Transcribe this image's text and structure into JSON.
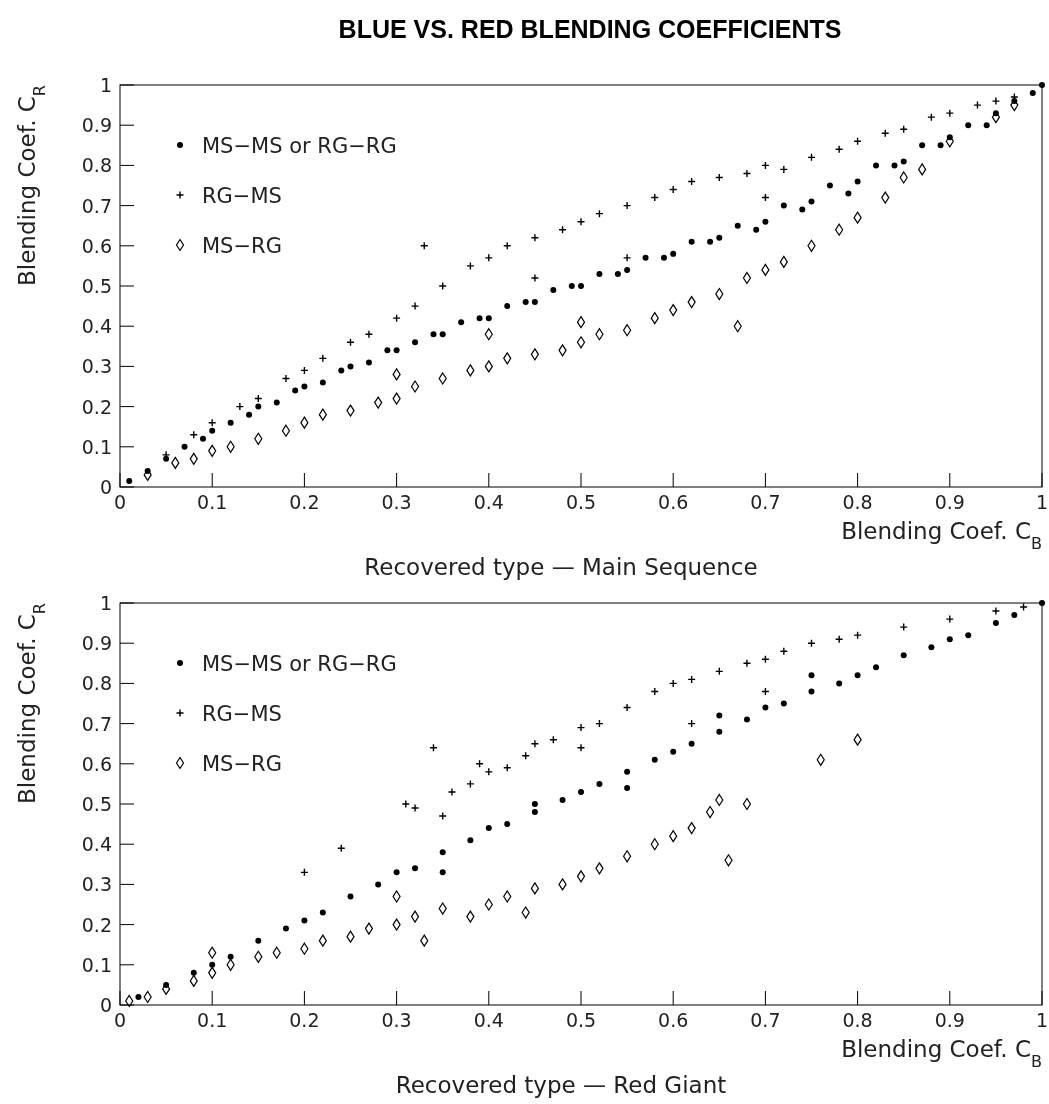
{
  "chart_data": [
    {
      "type": "scatter",
      "title": "BLUE VS. RED BLENDING COEFFICIENTS",
      "xlabel": "Blending Coef. C$_{B}$",
      "ylabel": "Blending Coef. C$_{R}$",
      "annotations": [
        "Recovered type  —  Main Sequence"
      ],
      "xlim": [
        0,
        1
      ],
      "ylim": [
        0,
        1
      ],
      "xticks": [
        0,
        0.1,
        0.2,
        0.3,
        0.4,
        0.5,
        0.6,
        0.7,
        0.8,
        0.9,
        1
      ],
      "yticks": [
        0,
        0.1,
        0.2,
        0.3,
        0.4,
        0.5,
        0.6,
        0.7,
        0.8,
        0.9,
        1
      ],
      "grid": false,
      "legend": "top left",
      "series": [
        {
          "name": "MS−MS or RG−RG",
          "color": "#000000",
          "marker": "circle",
          "x": [
            0.01,
            0.03,
            0.05,
            0.07,
            0.09,
            0.1,
            0.12,
            0.14,
            0.15,
            0.17,
            0.19,
            0.2,
            0.22,
            0.24,
            0.25,
            0.27,
            0.29,
            0.3,
            0.32,
            0.34,
            0.35,
            0.37,
            0.39,
            0.4,
            0.42,
            0.44,
            0.45,
            0.47,
            0.49,
            0.5,
            0.52,
            0.54,
            0.55,
            0.57,
            0.59,
            0.6,
            0.62,
            0.64,
            0.65,
            0.67,
            0.69,
            0.7,
            0.72,
            0.74,
            0.75,
            0.77,
            0.79,
            0.8,
            0.82,
            0.84,
            0.85,
            0.87,
            0.89,
            0.9,
            0.92,
            0.94,
            0.95,
            0.97,
            0.99,
            1.0
          ],
          "values": [
            0.015,
            0.04,
            0.07,
            0.1,
            0.12,
            0.14,
            0.16,
            0.18,
            0.2,
            0.21,
            0.24,
            0.25,
            0.26,
            0.29,
            0.3,
            0.31,
            0.34,
            0.34,
            0.36,
            0.38,
            0.38,
            0.41,
            0.42,
            0.42,
            0.45,
            0.46,
            0.46,
            0.49,
            0.5,
            0.5,
            0.53,
            0.53,
            0.54,
            0.57,
            0.57,
            0.58,
            0.61,
            0.61,
            0.62,
            0.65,
            0.64,
            0.66,
            0.7,
            0.69,
            0.71,
            0.75,
            0.73,
            0.76,
            0.8,
            0.8,
            0.81,
            0.85,
            0.85,
            0.87,
            0.9,
            0.9,
            0.93,
            0.96,
            0.98,
            1.0
          ]
        },
        {
          "name": "RG−MS",
          "color": "#000000",
          "marker": "cross",
          "x": [
            0.05,
            0.08,
            0.1,
            0.13,
            0.15,
            0.18,
            0.2,
            0.22,
            0.25,
            0.27,
            0.3,
            0.32,
            0.33,
            0.35,
            0.38,
            0.4,
            0.42,
            0.45,
            0.45,
            0.48,
            0.5,
            0.52,
            0.55,
            0.55,
            0.58,
            0.6,
            0.62,
            0.65,
            0.68,
            0.7,
            0.7,
            0.72,
            0.75,
            0.78,
            0.8,
            0.83,
            0.85,
            0.88,
            0.9,
            0.93,
            0.95,
            0.97
          ],
          "values": [
            0.08,
            0.13,
            0.16,
            0.2,
            0.22,
            0.27,
            0.29,
            0.32,
            0.36,
            0.38,
            0.42,
            0.45,
            0.6,
            0.5,
            0.55,
            0.57,
            0.6,
            0.62,
            0.52,
            0.64,
            0.66,
            0.68,
            0.7,
            0.57,
            0.72,
            0.74,
            0.76,
            0.77,
            0.78,
            0.8,
            0.72,
            0.79,
            0.82,
            0.84,
            0.86,
            0.88,
            0.89,
            0.92,
            0.93,
            0.95,
            0.96,
            0.97
          ]
        },
        {
          "name": "MS−RG",
          "color": "#000000",
          "marker": "diamond",
          "x": [
            0.03,
            0.06,
            0.08,
            0.1,
            0.12,
            0.15,
            0.18,
            0.2,
            0.22,
            0.25,
            0.28,
            0.3,
            0.3,
            0.32,
            0.35,
            0.38,
            0.4,
            0.4,
            0.42,
            0.45,
            0.48,
            0.5,
            0.5,
            0.52,
            0.55,
            0.58,
            0.6,
            0.62,
            0.65,
            0.67,
            0.68,
            0.7,
            0.72,
            0.75,
            0.78,
            0.8,
            0.83,
            0.85,
            0.87,
            0.9,
            0.95,
            0.97
          ],
          "values": [
            0.03,
            0.06,
            0.07,
            0.09,
            0.1,
            0.12,
            0.14,
            0.16,
            0.18,
            0.19,
            0.21,
            0.22,
            0.28,
            0.25,
            0.27,
            0.29,
            0.3,
            0.38,
            0.32,
            0.33,
            0.34,
            0.36,
            0.41,
            0.38,
            0.39,
            0.42,
            0.44,
            0.46,
            0.48,
            0.4,
            0.52,
            0.54,
            0.56,
            0.6,
            0.64,
            0.67,
            0.72,
            0.77,
            0.79,
            0.86,
            0.92,
            0.95
          ]
        }
      ]
    },
    {
      "type": "scatter",
      "xlabel": "Blending Coef. C$_{B}$",
      "ylabel": "Blending Coef. C$_{R}$",
      "annotations": [
        "Recovered type  —  Red Giant"
      ],
      "xlim": [
        0,
        1
      ],
      "ylim": [
        0,
        1
      ],
      "xticks": [
        0,
        0.1,
        0.2,
        0.3,
        0.4,
        0.5,
        0.6,
        0.7,
        0.8,
        0.9,
        1
      ],
      "yticks": [
        0,
        0.1,
        0.2,
        0.3,
        0.4,
        0.5,
        0.6,
        0.7,
        0.8,
        0.9,
        1
      ],
      "grid": false,
      "legend": "top left",
      "series": [
        {
          "name": "MS−MS or RG−RG",
          "color": "#000000",
          "marker": "circle",
          "x": [
            0.02,
            0.05,
            0.08,
            0.1,
            0.12,
            0.15,
            0.18,
            0.2,
            0.22,
            0.25,
            0.28,
            0.3,
            0.32,
            0.35,
            0.35,
            0.38,
            0.4,
            0.42,
            0.45,
            0.45,
            0.48,
            0.5,
            0.52,
            0.55,
            0.55,
            0.58,
            0.6,
            0.62,
            0.65,
            0.65,
            0.68,
            0.7,
            0.72,
            0.75,
            0.75,
            0.78,
            0.8,
            0.82,
            0.85,
            0.88,
            0.9,
            0.92,
            0.95,
            0.97,
            1.0
          ],
          "values": [
            0.02,
            0.05,
            0.08,
            0.1,
            0.12,
            0.16,
            0.19,
            0.21,
            0.23,
            0.27,
            0.3,
            0.33,
            0.34,
            0.38,
            0.33,
            0.41,
            0.44,
            0.45,
            0.48,
            0.5,
            0.51,
            0.53,
            0.55,
            0.58,
            0.54,
            0.61,
            0.63,
            0.65,
            0.68,
            0.72,
            0.71,
            0.74,
            0.75,
            0.78,
            0.82,
            0.8,
            0.82,
            0.84,
            0.87,
            0.89,
            0.91,
            0.92,
            0.95,
            0.97,
            1.0
          ]
        },
        {
          "name": "RG−MS",
          "color": "#000000",
          "marker": "cross",
          "x": [
            0.2,
            0.24,
            0.31,
            0.32,
            0.34,
            0.35,
            0.36,
            0.38,
            0.39,
            0.4,
            0.42,
            0.44,
            0.45,
            0.47,
            0.5,
            0.5,
            0.52,
            0.55,
            0.58,
            0.6,
            0.62,
            0.62,
            0.65,
            0.68,
            0.7,
            0.7,
            0.72,
            0.75,
            0.78,
            0.8,
            0.85,
            0.9,
            0.95,
            0.98
          ],
          "values": [
            0.33,
            0.39,
            0.5,
            0.49,
            0.64,
            0.47,
            0.53,
            0.55,
            0.6,
            0.58,
            0.59,
            0.62,
            0.65,
            0.66,
            0.69,
            0.64,
            0.7,
            0.74,
            0.78,
            0.8,
            0.81,
            0.7,
            0.83,
            0.85,
            0.86,
            0.78,
            0.88,
            0.9,
            0.91,
            0.92,
            0.94,
            0.96,
            0.98,
            0.99
          ]
        },
        {
          "name": "MS−RG",
          "color": "#000000",
          "marker": "diamond",
          "x": [
            0.01,
            0.03,
            0.05,
            0.08,
            0.1,
            0.1,
            0.12,
            0.15,
            0.17,
            0.2,
            0.22,
            0.25,
            0.27,
            0.3,
            0.3,
            0.32,
            0.33,
            0.35,
            0.38,
            0.4,
            0.42,
            0.44,
            0.45,
            0.48,
            0.5,
            0.52,
            0.55,
            0.58,
            0.6,
            0.62,
            0.64,
            0.65,
            0.66,
            0.68,
            0.76,
            0.8
          ],
          "values": [
            0.01,
            0.02,
            0.04,
            0.06,
            0.08,
            0.13,
            0.1,
            0.12,
            0.13,
            0.14,
            0.16,
            0.17,
            0.19,
            0.2,
            0.27,
            0.22,
            0.16,
            0.24,
            0.22,
            0.25,
            0.27,
            0.23,
            0.29,
            0.3,
            0.32,
            0.34,
            0.37,
            0.4,
            0.42,
            0.44,
            0.48,
            0.51,
            0.36,
            0.5,
            0.61,
            0.66
          ]
        }
      ]
    }
  ]
}
